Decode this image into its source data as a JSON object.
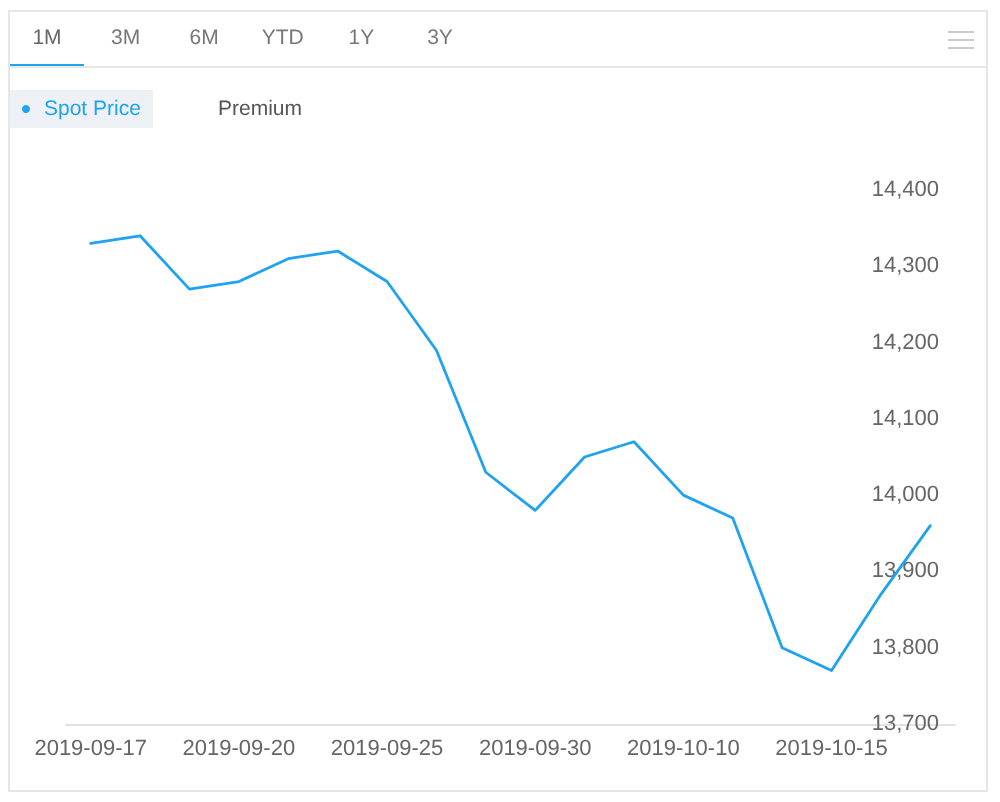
{
  "chart_data": {
    "type": "line",
    "categories": [
      "2019-09-17",
      null,
      null,
      "2019-09-20",
      null,
      null,
      "2019-09-25",
      null,
      null,
      "2019-09-30",
      null,
      null,
      "2019-10-10",
      null,
      null,
      "2019-10-15",
      null,
      null
    ],
    "series": [
      {
        "name": "Spot Price",
        "color": "#1fa2f0",
        "values": [
          14330,
          14340,
          14270,
          14280,
          14310,
          14320,
          14280,
          14190,
          14030,
          13980,
          14050,
          14070,
          14000,
          13970,
          13800,
          13770,
          13870,
          13960
        ]
      }
    ],
    "ylim": [
      13700,
      14400
    ],
    "yticks": [
      {
        "value": 13700,
        "label": "13,700"
      },
      {
        "value": 13800,
        "label": "13,800"
      },
      {
        "value": 13900,
        "label": "13,900"
      },
      {
        "value": 14000,
        "label": "14,000"
      },
      {
        "value": 14100,
        "label": "14,100"
      },
      {
        "value": 14200,
        "label": "14,200"
      },
      {
        "value": 14300,
        "label": "14,300"
      },
      {
        "value": 14400,
        "label": "14,400"
      }
    ],
    "grid": false,
    "legend": "top left",
    "marker": "none",
    "annotations": [
      "1M",
      "3M",
      "6M",
      "YTD",
      "1Y",
      "3Y",
      "Premium"
    ]
  }
}
